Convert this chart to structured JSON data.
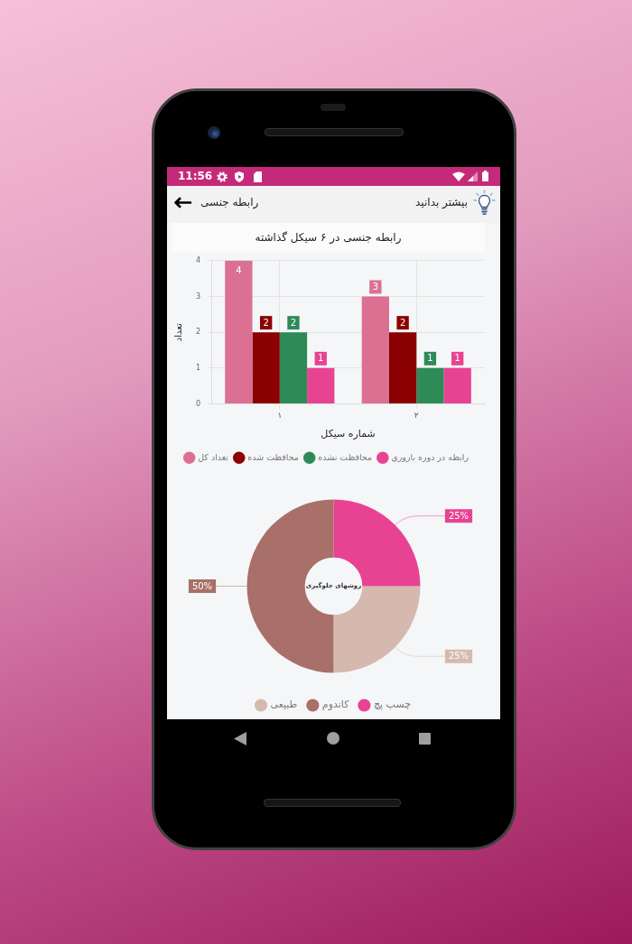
{
  "chart_data": [
    {
      "type": "other",
      "title": "رابطه جنسی",
      "annotations": [
        "11:56",
        "بیشتر بدانید"
      ]
    },
    {
      "type": "bar",
      "title": "رابطه جنسی در ۶ سیکل گذاشته",
      "xlabel": "شماره سیکل",
      "ylabel": "تعداد",
      "categories": [
        "۱",
        "۲"
      ],
      "series": [
        {
          "name": "تعداد کل",
          "color": "#db7093",
          "values": [
            4,
            3
          ]
        },
        {
          "name": "محافظت شده",
          "color": "#8b0000",
          "values": [
            2,
            2
          ]
        },
        {
          "name": "محافظت نشده",
          "color": "#2e8b57",
          "values": [
            2,
            1
          ]
        },
        {
          "name": "رابطه در دوره باروری",
          "color": "#e84393",
          "values": [
            1,
            1
          ]
        }
      ],
      "ylim": [
        0,
        4
      ],
      "yticks": [
        0,
        1,
        2,
        3,
        4
      ],
      "grid": true,
      "legend": "bottom",
      "data_labels": true
    },
    {
      "type": "donut",
      "title": "روشهای جلوگیری",
      "categories": [
        "طبیعی",
        "کاندوم",
        "چسب پچ"
      ],
      "values": [
        25,
        50,
        25
      ],
      "colors": [
        "#d6b9ae",
        "#a87068",
        "#e84393"
      ],
      "value_labels": [
        "25%",
        "50%",
        "25%"
      ],
      "legend": "bottom"
    }
  ]
}
